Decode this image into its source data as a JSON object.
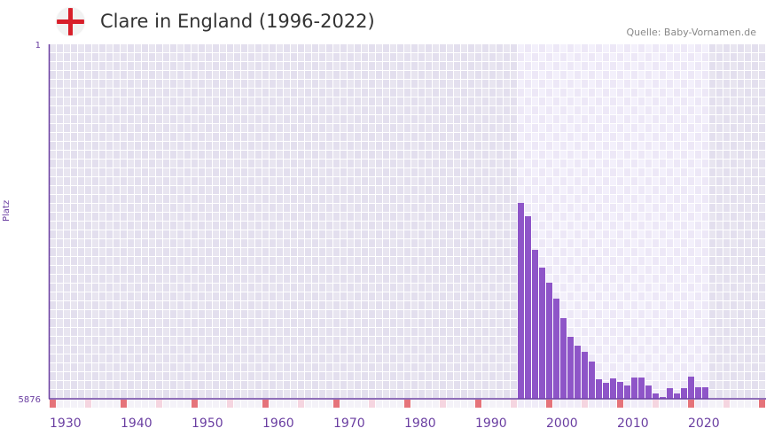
{
  "header": {
    "title": "Clare in England (1996-2022)",
    "source": "Quelle: Baby-Vornamen.de",
    "flag_icon": "england-flag-icon"
  },
  "chart_data": {
    "type": "bar",
    "title": "Clare in England (1996-2022)",
    "xlabel": "",
    "ylabel": "Platz",
    "y_inverted": true,
    "ylim": [
      1,
      5876
    ],
    "y_ticks": [
      "1",
      "5876"
    ],
    "xlim": [
      1930,
      2030
    ],
    "x_ticks": [
      "1930",
      "1940",
      "1950",
      "1960",
      "1970",
      "1980",
      "1990",
      "2000",
      "2010",
      "2020"
    ],
    "highlight_range": [
      1996,
      2022
    ],
    "categories": [
      1996,
      1997,
      1998,
      1999,
      2000,
      2001,
      2002,
      2003,
      2004,
      2005,
      2006,
      2007,
      2008,
      2009,
      2010,
      2011,
      2012,
      2013,
      2014,
      2015,
      2016,
      2017,
      2018,
      2019,
      2020,
      2021,
      2022
    ],
    "values": [
      2630,
      2850,
      3408,
      3702,
      3952,
      4216,
      4539,
      4848,
      4995,
      5098,
      5259,
      5553,
      5612,
      5538,
      5597,
      5656,
      5524,
      5524,
      5656,
      5788,
      5847,
      5700,
      5788,
      5700,
      5509,
      5685,
      5685
    ],
    "colors": {
      "bar": "#8e55c8",
      "axis": "#6a3ea1",
      "decade_mark": "#e5737a",
      "half_decade_mark": "#f5d5e0"
    }
  }
}
